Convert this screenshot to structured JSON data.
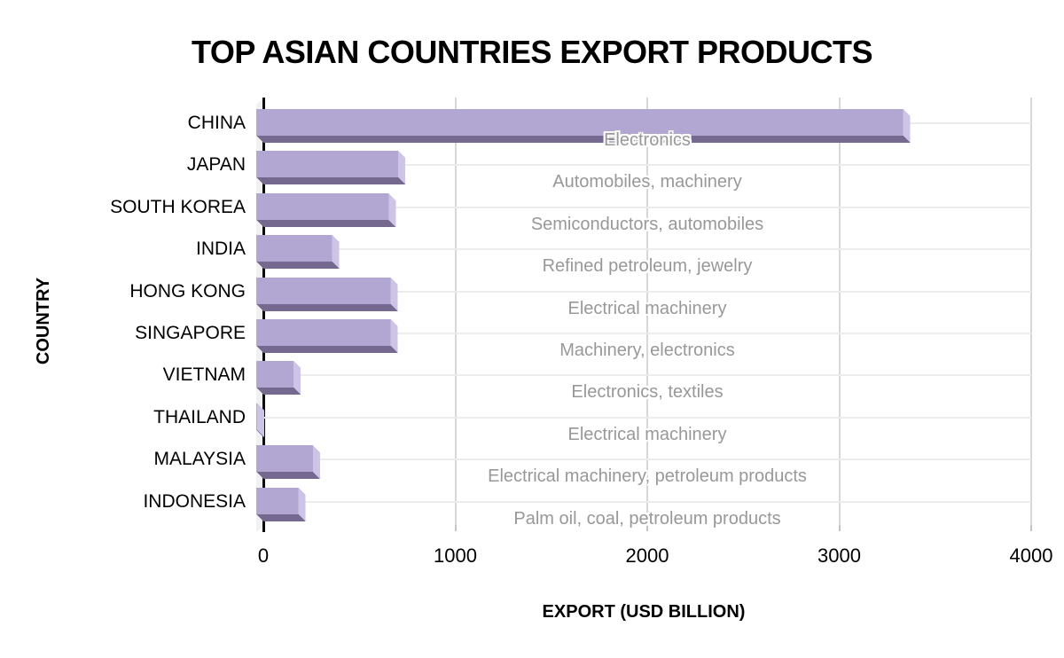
{
  "title": "TOP ASIAN COUNTRIES EXPORT PRODUCTS",
  "x_axis": {
    "title": "EXPORT (USD BILLION)"
  },
  "y_axis": {
    "title": "COUNTRY"
  },
  "colors": {
    "bar_front": "#b2a7d3",
    "bar_side": "#cdc4e6",
    "bar_bottom": "#76698f",
    "annotation_text": "#989898",
    "axis_line": "#0a0a0a",
    "grid_vertical": "#d7d7d7",
    "grid_horizontal": "#ececec",
    "plot_wall": "#f1f0f2",
    "label_text": "#000000"
  },
  "chart_data": {
    "type": "bar",
    "orientation": "horizontal",
    "style": "3d-bevel",
    "title": "TOP ASIAN COUNTRIES EXPORT PRODUCTS",
    "xlabel": "EXPORT (USD BILLION)",
    "ylabel": "COUNTRY",
    "xlim": [
      0,
      4000
    ],
    "x_ticks": [
      0,
      1000,
      2000,
      3000,
      4000
    ],
    "grid": true,
    "legend": false,
    "categories": [
      "CHINA",
      "JAPAN",
      "SOUTH KOREA",
      "INDIA",
      "HONG KONG",
      "SINGAPORE",
      "VIETNAM",
      "THAILAND",
      "MALAYSIA",
      "INDONESIA"
    ],
    "values": [
      3370,
      740,
      690,
      395,
      700,
      700,
      195,
      5,
      295,
      220
    ],
    "annotations": [
      "Electronics",
      "Automobiles, machinery",
      "Semiconductors, automobiles",
      "Refined petroleum, jewelry",
      "Electrical machinery",
      "Machinery, electronics",
      "Electronics, textiles",
      "Electrical machinery",
      "Electrical machinery, petroleum products",
      "Palm oil, coal, petroleum products"
    ]
  }
}
